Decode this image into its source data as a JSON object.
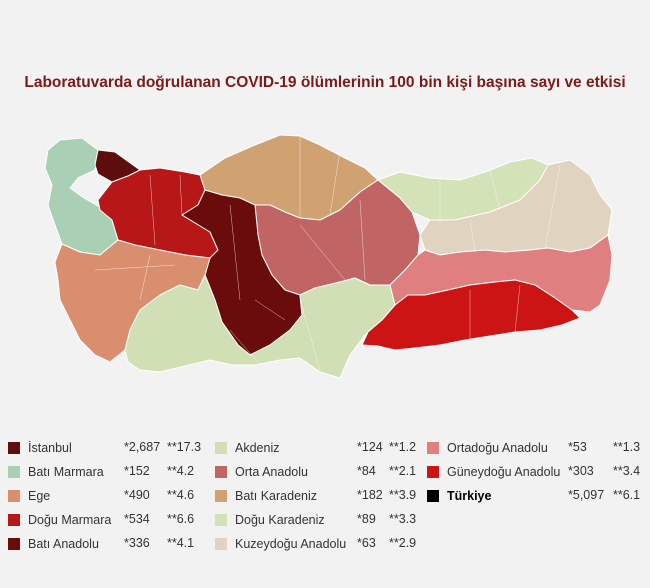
{
  "title": "Laboratuvarda doğrulanan COVID-19 ölümlerinin 100 bin kişi başına sayı ve etkisi",
  "regions": [
    {
      "name": "İstanbul",
      "v1": "*2,687",
      "v2": "**17.3",
      "color": "#5e0d0d"
    },
    {
      "name": "Batı  Marmara",
      "v1": "*152",
      "v2": "**4.2",
      "color": "#a9cfb5"
    },
    {
      "name": "Ege",
      "v1": "*490",
      "v2": "**4.6",
      "color": "#d98f6e"
    },
    {
      "name": "Doğu  Marmara",
      "v1": "*534",
      "v2": "**6.6",
      "color": "#b81717"
    },
    {
      "name": "Batı  Anadolu",
      "v1": "*336",
      "v2": "**4.1",
      "color": "#6b0c0c"
    },
    {
      "name": "Akdeniz",
      "v1": "*124",
      "v2": "**1.2",
      "color": "#d0dfb4"
    },
    {
      "name": "Orta  Anadolu",
      "v1": "*84",
      "v2": "**2.1",
      "color": "#c06464"
    },
    {
      "name": "Batı  Karadeniz",
      "v1": "*182",
      "v2": "**3.9",
      "color": "#d1a271"
    },
    {
      "name": "Doğu Karadeniz",
      "v1": "*89",
      "v2": "**3.3",
      "color": "#d4e2b8"
    },
    {
      "name": "Kuzeydoğu Anadolu",
      "v1": "*63",
      "v2": "**2.9",
      "color": "#e0d3bf"
    },
    {
      "name": "Ortadoğu Anadolu",
      "v1": "*53",
      "v2": "**1.3",
      "color": "#e07f7f"
    },
    {
      "name": "Güneydoğu Anadolu",
      "v1": "*303",
      "v2": "**3.4",
      "color": "#cc1414"
    },
    {
      "name": "Türkiye",
      "v1": "*5,097",
      "v2": "**6.1",
      "color": "#000000"
    }
  ]
}
